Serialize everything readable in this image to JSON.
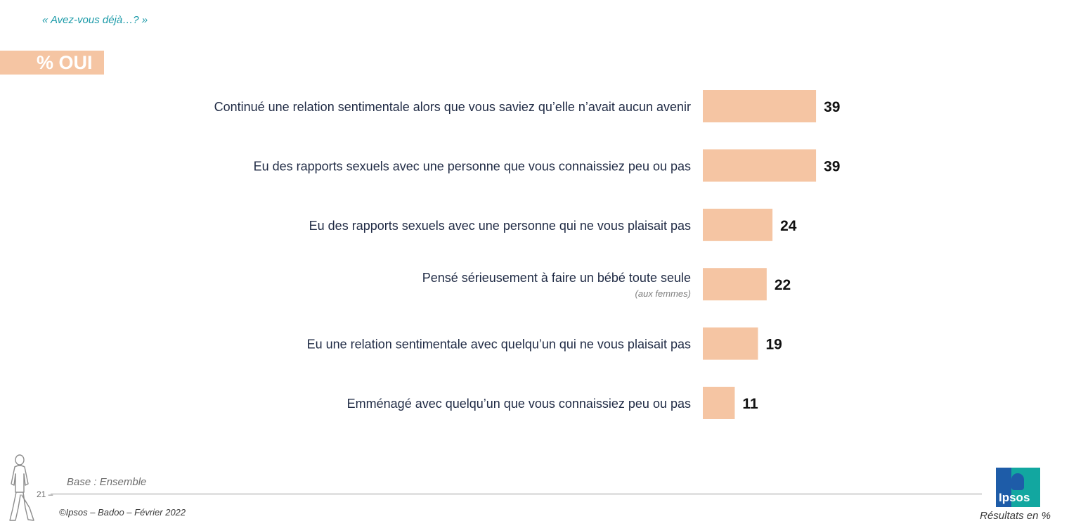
{
  "header": {
    "question": "« Avez-vous déjà…? »",
    "badge": "% OUI"
  },
  "chart_data": {
    "type": "bar",
    "orientation": "horizontal",
    "categories": [
      "Continué une relation sentimentale alors que vous saviez qu’elle n’avait aucun avenir",
      "Eu des rapports sexuels avec une personne que vous connaissiez peu ou pas",
      "Eu des rapports sexuels avec une personne qui ne vous plaisait pas",
      "Pensé sérieusement à faire un bébé toute seule",
      "Eu une relation sentimentale avec quelqu’un qui ne vous plaisait pas",
      "Emménagé avec quelqu’un que vous connaissiez peu ou pas"
    ],
    "sublabels": [
      "",
      "",
      "",
      "(aux femmes)",
      "",
      ""
    ],
    "values": [
      39,
      39,
      24,
      22,
      19,
      11
    ],
    "value_labels": [
      "39",
      "39",
      "24",
      "22",
      "19",
      "11"
    ],
    "bar_color": "#f5c5a3",
    "xlim": [
      0,
      100
    ],
    "grid": false
  },
  "footer": {
    "base": "Base : Ensemble",
    "page": "21 –",
    "copyright": "©Ipsos – Badoo – Février 2022",
    "results": "Résultats en %",
    "logo_text": "Ipsos"
  }
}
